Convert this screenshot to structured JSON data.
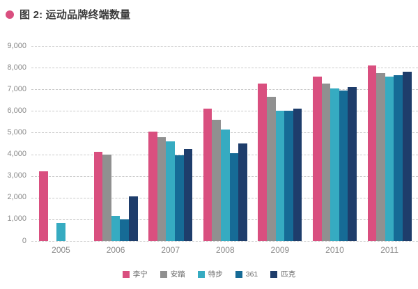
{
  "title": {
    "bullet_icon": "circle-bullet",
    "text": "图 2: 运动品牌终端数量"
  },
  "colors": {
    "accent_pink": "#d94f7f",
    "title_text": "#3a3a3a",
    "axis_text": "#8a8a8a",
    "gridline": "#c9c9c9",
    "legend_text": "#666666"
  },
  "chart_data": {
    "type": "bar",
    "title": "图 2: 运动品牌终端数量",
    "categories": [
      "2005",
      "2006",
      "2007",
      "2008",
      "2009",
      "2010",
      "2011"
    ],
    "series": [
      {
        "name": "李宁",
        "color": "#d94f7f",
        "values": [
          3200,
          4100,
          5050,
          6100,
          7250,
          7600,
          8100
        ]
      },
      {
        "name": "安踏",
        "color": "#909090",
        "values": [
          null,
          4000,
          4800,
          5600,
          6650,
          7250,
          7750
        ]
      },
      {
        "name": "特步",
        "color": "#36abc1",
        "values": [
          850,
          1150,
          4600,
          5150,
          6000,
          7050,
          7600
        ]
      },
      {
        "name": "361",
        "color": "#166b96",
        "values": [
          null,
          1000,
          3950,
          4050,
          6000,
          6950,
          7650
        ]
      },
      {
        "name": "匹克",
        "color": "#1e3d6b",
        "values": [
          null,
          2050,
          4250,
          4500,
          6100,
          7100,
          7800
        ]
      }
    ],
    "xlabel": "",
    "ylabel": "",
    "ylim": [
      0,
      9000
    ],
    "ytick_interval": 1000,
    "ytick_labels": [
      "0",
      "1,000",
      "2,000",
      "3,000",
      "4,000",
      "5,000",
      "6,000",
      "7,000",
      "8,000",
      "9,000"
    ],
    "grid": "horizontal-dashed",
    "legend_position": "bottom",
    "bar_groups_have_gaps": true
  }
}
